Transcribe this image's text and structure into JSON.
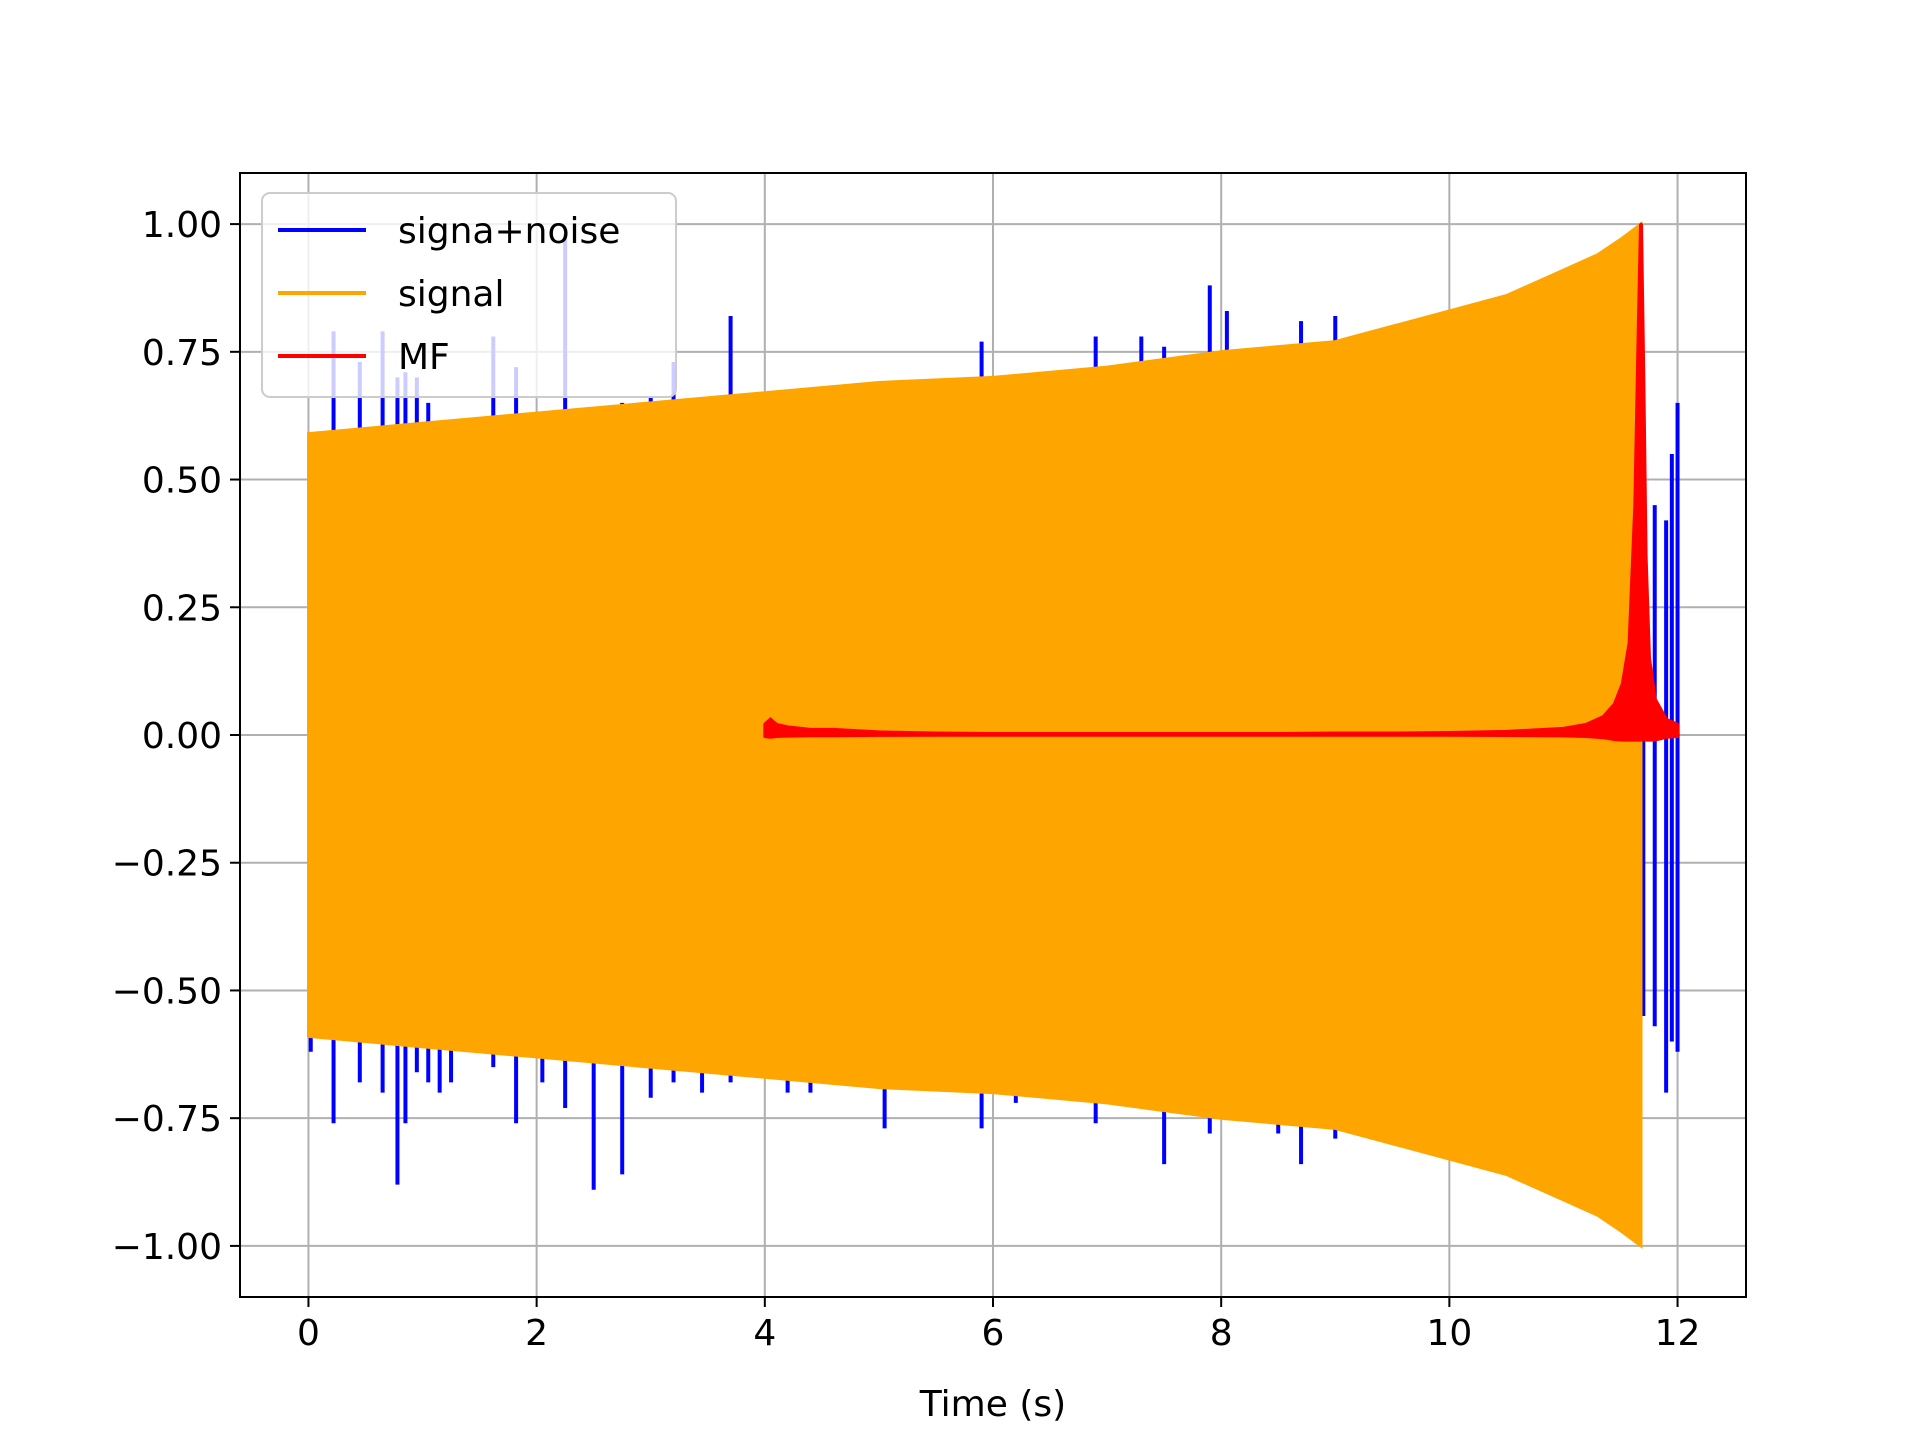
{
  "chart_data": {
    "type": "line",
    "title": "",
    "xlabel": "Time (s)",
    "ylabel": "",
    "xlim": [
      -0.6,
      12.6
    ],
    "ylim": [
      -1.1,
      1.1
    ],
    "x_ticks": [
      0,
      2,
      4,
      6,
      8,
      10,
      12
    ],
    "x_tick_labels": [
      "0",
      "2",
      "4",
      "6",
      "8",
      "10",
      "12"
    ],
    "y_ticks": [
      1.0,
      0.75,
      0.5,
      0.25,
      0.0,
      -0.25,
      -0.5,
      -0.75,
      -1.0
    ],
    "y_tick_labels": [
      "1.00",
      "0.75",
      "0.50",
      "0.25",
      "0.00",
      "−0.25",
      "−0.50",
      "−0.75",
      "−1.00"
    ],
    "grid": true,
    "legend_position": "top-left",
    "series": [
      {
        "name": "signa+noise",
        "color": "#0000ff",
        "spikes": [
          [
            0.02,
            0.55,
            -0.62
          ],
          [
            0.22,
            0.79,
            -0.76
          ],
          [
            0.45,
            0.73,
            -0.68
          ],
          [
            0.65,
            0.79,
            -0.7
          ],
          [
            0.78,
            0.7,
            -0.88
          ],
          [
            0.85,
            0.71,
            -0.76
          ],
          [
            0.95,
            0.7,
            -0.66
          ],
          [
            1.05,
            0.65,
            -0.68
          ],
          [
            1.15,
            0.6,
            -0.7
          ],
          [
            1.25,
            0.6,
            -0.68
          ],
          [
            1.62,
            0.78,
            -0.65
          ],
          [
            1.82,
            0.72,
            -0.76
          ],
          [
            2.05,
            0.6,
            -0.68
          ],
          [
            2.25,
            0.98,
            -0.73
          ],
          [
            2.5,
            0.6,
            -0.89
          ],
          [
            2.75,
            0.65,
            -0.86
          ],
          [
            3.0,
            0.66,
            -0.71
          ],
          [
            3.2,
            0.73,
            -0.68
          ],
          [
            3.45,
            0.62,
            -0.7
          ],
          [
            3.7,
            0.82,
            -0.68
          ],
          [
            4.2,
            0.67,
            -0.7
          ],
          [
            4.4,
            0.6,
            -0.7
          ],
          [
            5.05,
            0.6,
            -0.77
          ],
          [
            5.9,
            0.77,
            -0.77
          ],
          [
            6.2,
            0.7,
            -0.72
          ],
          [
            6.9,
            0.78,
            -0.76
          ],
          [
            7.3,
            0.78,
            -0.7
          ],
          [
            7.5,
            0.76,
            -0.84
          ],
          [
            7.9,
            0.88,
            -0.78
          ],
          [
            8.05,
            0.83,
            -0.75
          ],
          [
            8.5,
            0.75,
            -0.78
          ],
          [
            8.7,
            0.81,
            -0.84
          ],
          [
            9.0,
            0.82,
            -0.79
          ],
          [
            11.6,
            0.58,
            -0.52
          ],
          [
            11.7,
            0.52,
            -0.55
          ],
          [
            11.8,
            0.45,
            -0.57
          ],
          [
            11.9,
            0.42,
            -0.7
          ],
          [
            11.95,
            0.55,
            -0.6
          ],
          [
            12.0,
            0.65,
            -0.62
          ]
        ]
      },
      {
        "name": "signal",
        "color": "#ffa500",
        "x": [
          0,
          1,
          2,
          3,
          4,
          5,
          6,
          7,
          8,
          9,
          10,
          10.5,
          11,
          11.3,
          11.5,
          11.68
        ],
        "upper": [
          0.59,
          0.61,
          0.63,
          0.65,
          0.67,
          0.69,
          0.7,
          0.72,
          0.75,
          0.77,
          0.83,
          0.86,
          0.91,
          0.94,
          0.97,
          1.0
        ],
        "lower": [
          -0.59,
          -0.61,
          -0.63,
          -0.65,
          -0.67,
          -0.69,
          -0.7,
          -0.72,
          -0.75,
          -0.77,
          -0.83,
          -0.86,
          -0.91,
          -0.94,
          -0.97,
          -1.0
        ]
      },
      {
        "name": "MF",
        "color": "#ff0000",
        "x": [
          4.0,
          4.05,
          4.1,
          4.2,
          4.4,
          4.6,
          5.0,
          5.5,
          6.0,
          6.5,
          7.0,
          7.5,
          8.0,
          8.5,
          9.0,
          9.5,
          10.0,
          10.5,
          11.0,
          11.2,
          11.35,
          11.45,
          11.52,
          11.58,
          11.63,
          11.66,
          11.68,
          11.7,
          11.72,
          11.75,
          11.8,
          11.85,
          11.9,
          12.0
        ],
        "values": [
          0.02,
          0.03,
          0.02,
          0.015,
          0.01,
          0.01,
          0.005,
          0.003,
          0.002,
          0.002,
          0.002,
          0.002,
          0.002,
          0.002,
          0.003,
          0.003,
          0.004,
          0.006,
          0.012,
          0.02,
          0.035,
          0.06,
          0.1,
          0.18,
          0.45,
          0.8,
          1.0,
          0.7,
          0.35,
          0.15,
          0.07,
          0.05,
          0.03,
          0.02
        ]
      }
    ]
  }
}
